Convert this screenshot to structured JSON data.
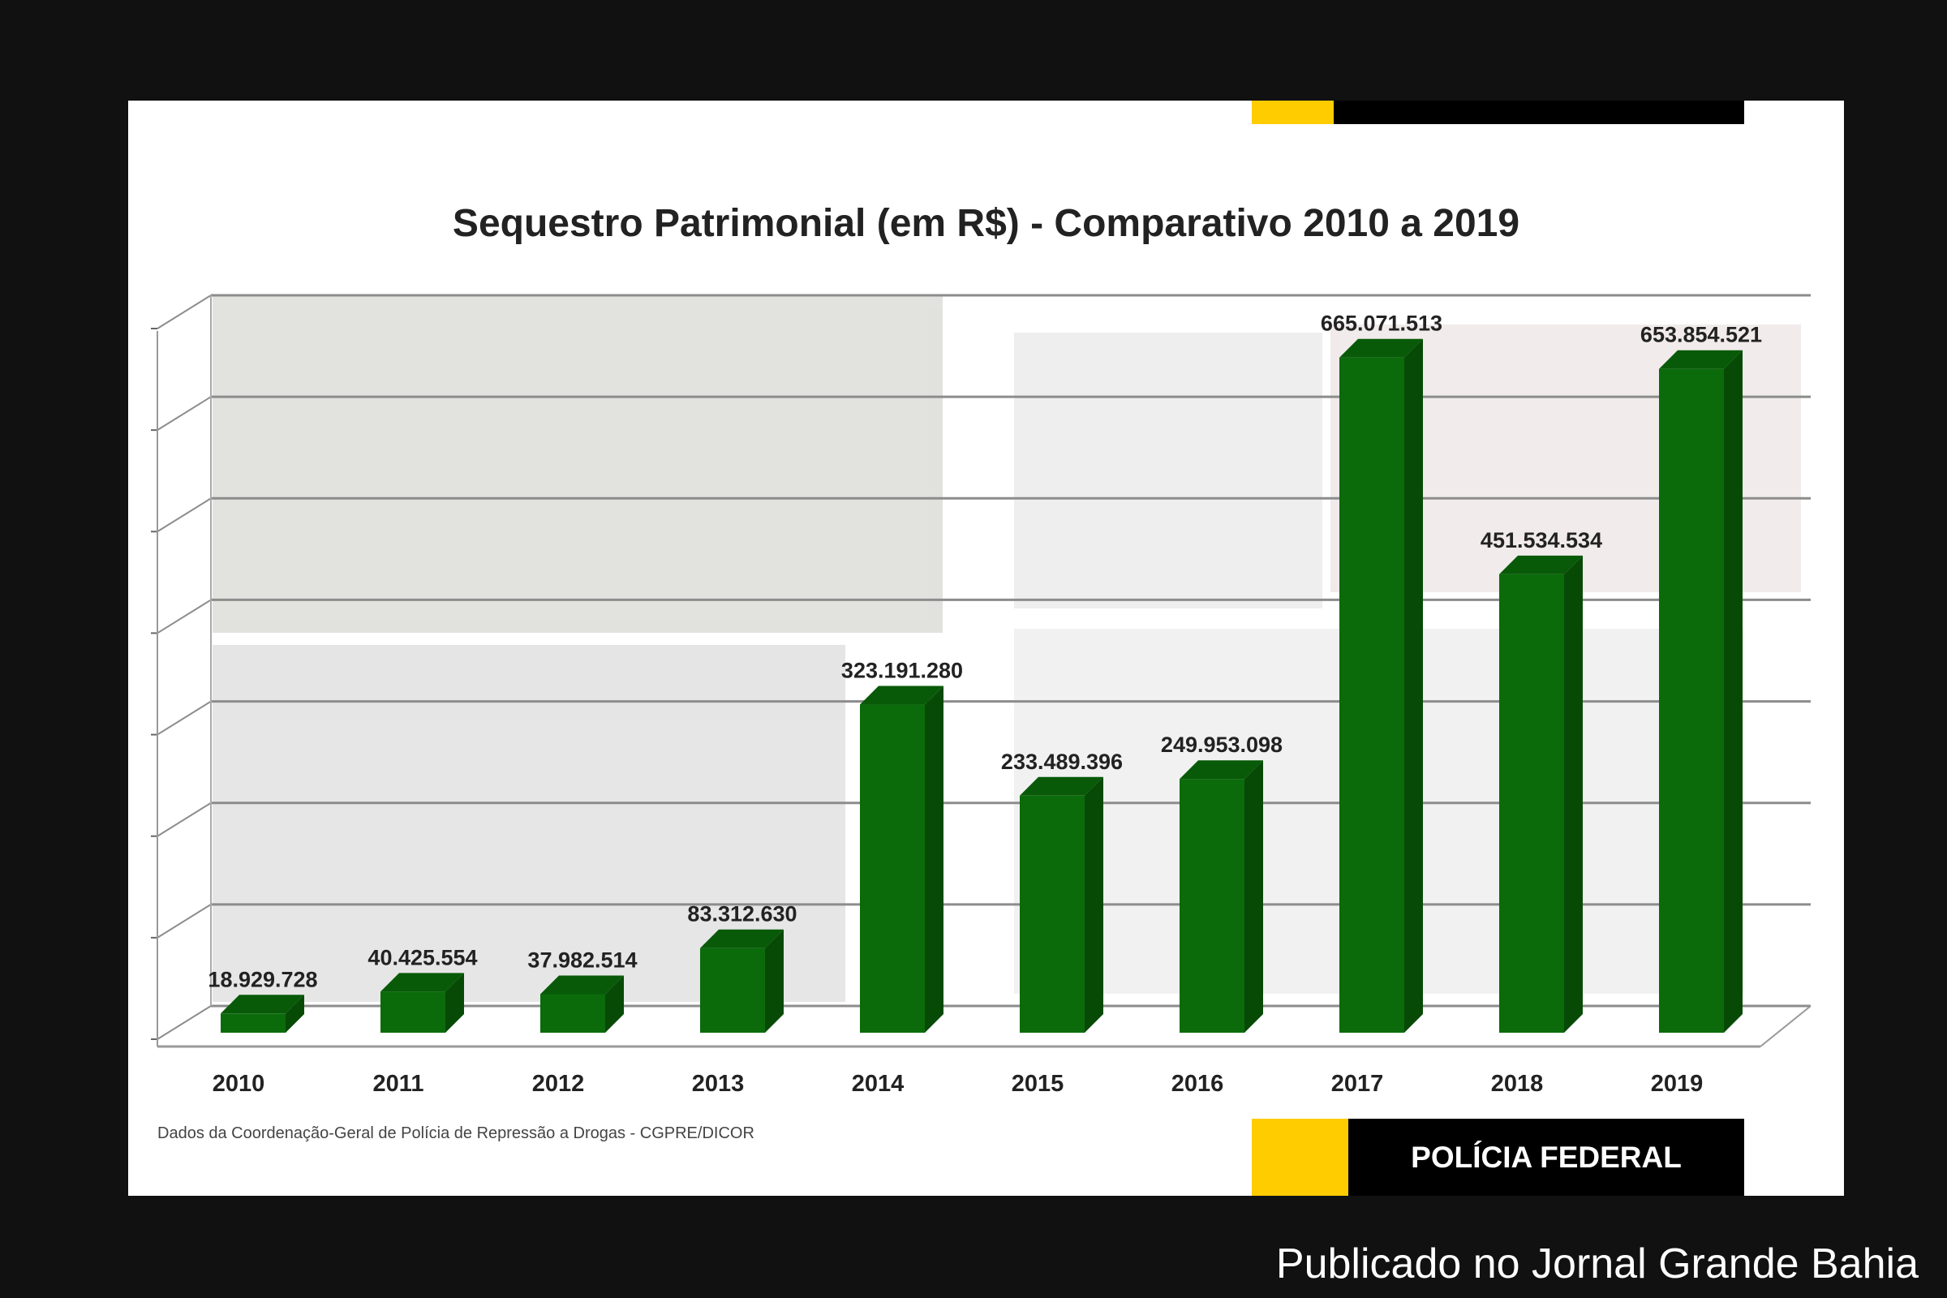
{
  "chart_data": {
    "type": "bar",
    "title": "Sequestro Patrimonial (em R$) - Comparativo 2010 a 2019",
    "categories": [
      "2010",
      "2011",
      "2012",
      "2013",
      "2014",
      "2015",
      "2016",
      "2017",
      "2018",
      "2019"
    ],
    "values": [
      18929728,
      40425554,
      37982514,
      83312630,
      323191280,
      233489396,
      249953098,
      665071513,
      451534534,
      653854521
    ],
    "data_labels": [
      "18.929.728",
      "40.425.554",
      "37.982.514",
      "83.312.630",
      "323.191.280",
      "233.489.396",
      "249.953.098",
      "665.071.513",
      "451.534.534",
      "653.854.521"
    ],
    "xlabel": "",
    "ylabel": "",
    "ylim": [
      0,
      700000000
    ],
    "grid": true,
    "style": "3d-column",
    "bar_color": "#0b6b0b",
    "bar_side_color": "#064a06",
    "bar_top_color": "#085a08"
  },
  "source_note": "Dados da Coordenação-Geral de Polícia de Repressão a Drogas - CGPRE/DICOR",
  "brand": "POLÍCIA FEDERAL",
  "watermark": "Publicado no Jornal Grande Bahia",
  "colors": {
    "accent_yellow": "#ffcc00",
    "dark": "#000000",
    "background": "#111111"
  }
}
